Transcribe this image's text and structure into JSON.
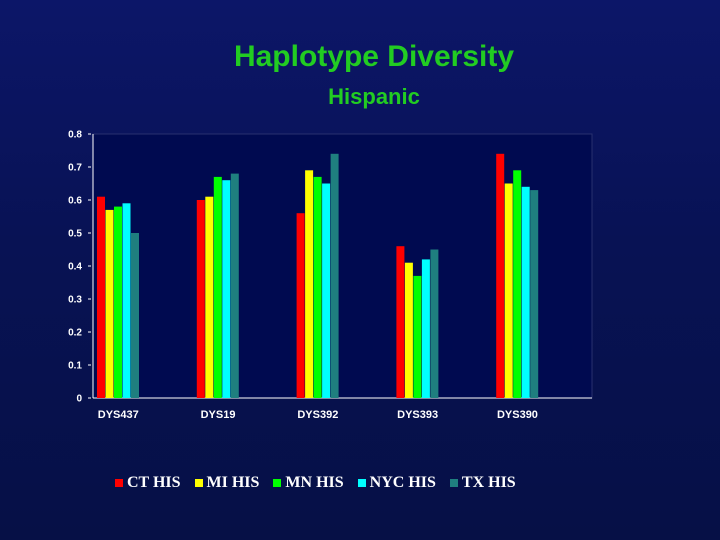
{
  "chart_data": {
    "type": "bar",
    "title": "Haplotype Diversity",
    "subtitle": "Hispanic",
    "categories": [
      "DYS437",
      "DYS19",
      "DYS392",
      "DYS393",
      "DYS390"
    ],
    "yticks": [
      "0",
      "0.1",
      "0.2",
      "0.3",
      "0.4",
      "0.5",
      "0.6",
      "0.7",
      "0.8"
    ],
    "ylim": [
      0,
      0.8
    ],
    "grid": false,
    "legend_position": "bottom",
    "series": [
      {
        "name": "CT HIS",
        "color": "#ff0000",
        "values": [
          0.61,
          0.6,
          0.56,
          0.46,
          0.74
        ]
      },
      {
        "name": "MI HIS",
        "color": "#ffff00",
        "values": [
          0.57,
          0.61,
          0.69,
          0.41,
          0.65
        ]
      },
      {
        "name": "MN HIS",
        "color": "#00ff00",
        "values": [
          0.58,
          0.67,
          0.67,
          0.37,
          0.69
        ]
      },
      {
        "name": "NYC HIS",
        "color": "#00ffff",
        "values": [
          0.59,
          0.66,
          0.65,
          0.42,
          0.64
        ]
      },
      {
        "name": "TX HIS",
        "color": "#1f7f7f",
        "values": [
          0.5,
          0.68,
          0.74,
          0.45,
          0.63
        ]
      }
    ]
  }
}
